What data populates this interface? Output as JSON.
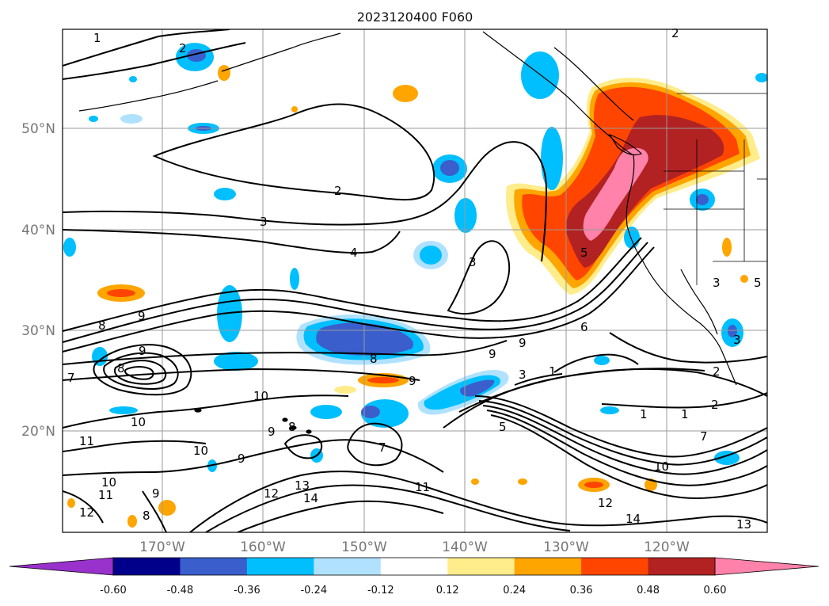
{
  "map": {
    "title": "2023120400 F060",
    "lat_labels": [
      "50°N",
      "40°N",
      "30°N",
      "20°N"
    ],
    "lon_labels": [
      "170°W",
      "160°W",
      "150°W",
      "140°W",
      "130°W",
      "120°W"
    ],
    "colorbar": {
      "labels": [
        "-0.60",
        "-0.48",
        "-0.36",
        "-0.24",
        "-0.12",
        "0.12",
        "0.24",
        "0.36",
        "0.48",
        "0.60"
      ],
      "colors": [
        "#9932cc",
        "#00008b",
        "#3a5fcd",
        "#00bfff",
        "#b0e2ff",
        "#ffffff",
        "#ffec8b",
        "#ffa500",
        "#ff4500",
        "#b22222",
        "#ff82ab"
      ]
    },
    "contour_labels": [
      "1",
      "2",
      "2",
      "2",
      "3",
      "4",
      "3",
      "5",
      "3",
      "8",
      "9",
      "8",
      "7",
      "9",
      "8",
      "9",
      "9",
      "9",
      "3",
      "1",
      "1",
      "1",
      "2",
      "10",
      "10",
      "9",
      "8",
      "10",
      "9",
      "11",
      "10",
      "11",
      "12",
      "8",
      "9",
      "12",
      "13",
      "14",
      "11",
      "12",
      "14",
      "13",
      "7",
      "5",
      "10",
      "7",
      "6",
      "3",
      "5",
      "2"
    ]
  }
}
